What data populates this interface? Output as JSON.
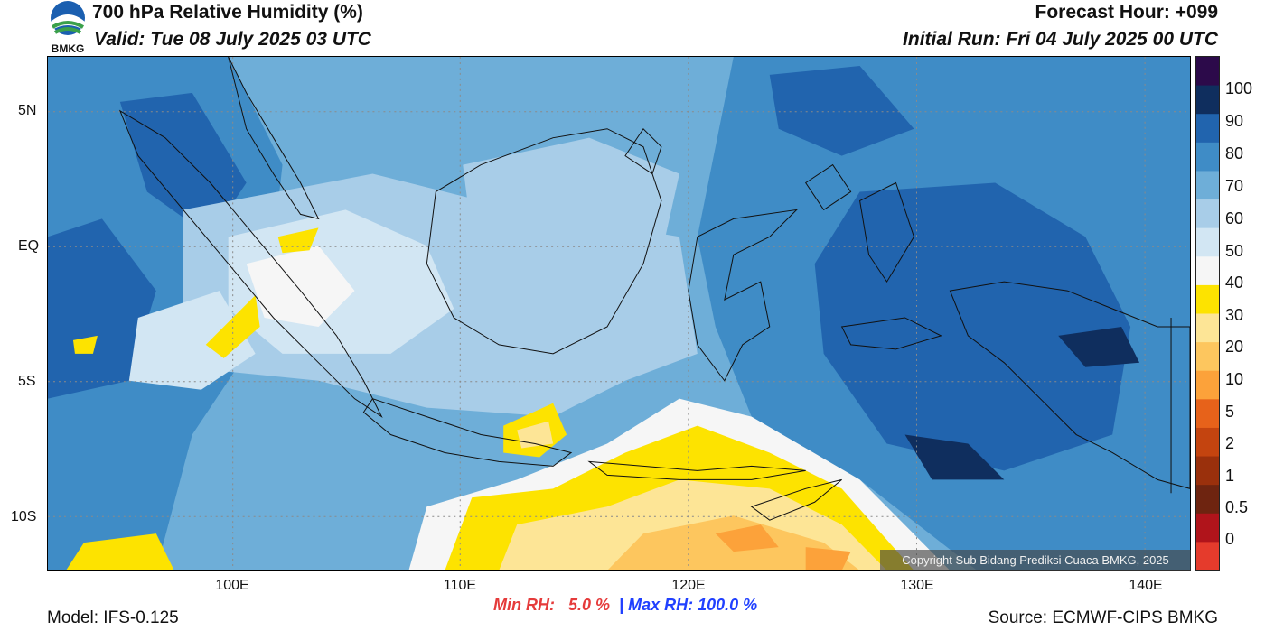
{
  "title": "700 hPa Relative Humidity (%)",
  "valid": "Valid: Tue 08 July 2025 03 UTC",
  "forecast_hour": "Forecast Hour: +099",
  "initial_run": "Initial Run: Fri 04 July 2025 00 UTC",
  "logo_text": "BMKG",
  "model": "Model: IFS-0.125",
  "source": "Source: ECMWF-CIPS BMKG",
  "min_rh_label": "Min RH:",
  "min_rh_value": "5.0 %",
  "separator": "|",
  "max_rh_text": "Max RH: 100.0 %",
  "copyright": "Copyright Sub Bidang Prediksi Cuaca BMKG, 2025",
  "lat_labels": [
    "5N",
    "EQ",
    "5S",
    "10S"
  ],
  "lon_labels": [
    "100E",
    "110E",
    "120E",
    "130E",
    "140E"
  ],
  "colorbar": {
    "labels": [
      "100",
      "90",
      "80",
      "70",
      "60",
      "50",
      "40",
      "30",
      "20",
      "10",
      "5",
      "2",
      "1",
      "0.5",
      "0"
    ],
    "colors_top_to_bottom": [
      "#2c0a4a",
      "#0f2e5e",
      "#2164ae",
      "#3f8cc6",
      "#6eaed8",
      "#a8cde8",
      "#d2e6f3",
      "#f6f6f6",
      "#fde300",
      "#fde596",
      "#fdc65e",
      "#fca23a",
      "#e7621a",
      "#c4440f",
      "#9a300c",
      "#6e2410",
      "#b0141b",
      "#e53b2c"
    ]
  },
  "colors": {
    "min_rh": "#e53b3b",
    "max_rh": "#2040ff"
  }
}
